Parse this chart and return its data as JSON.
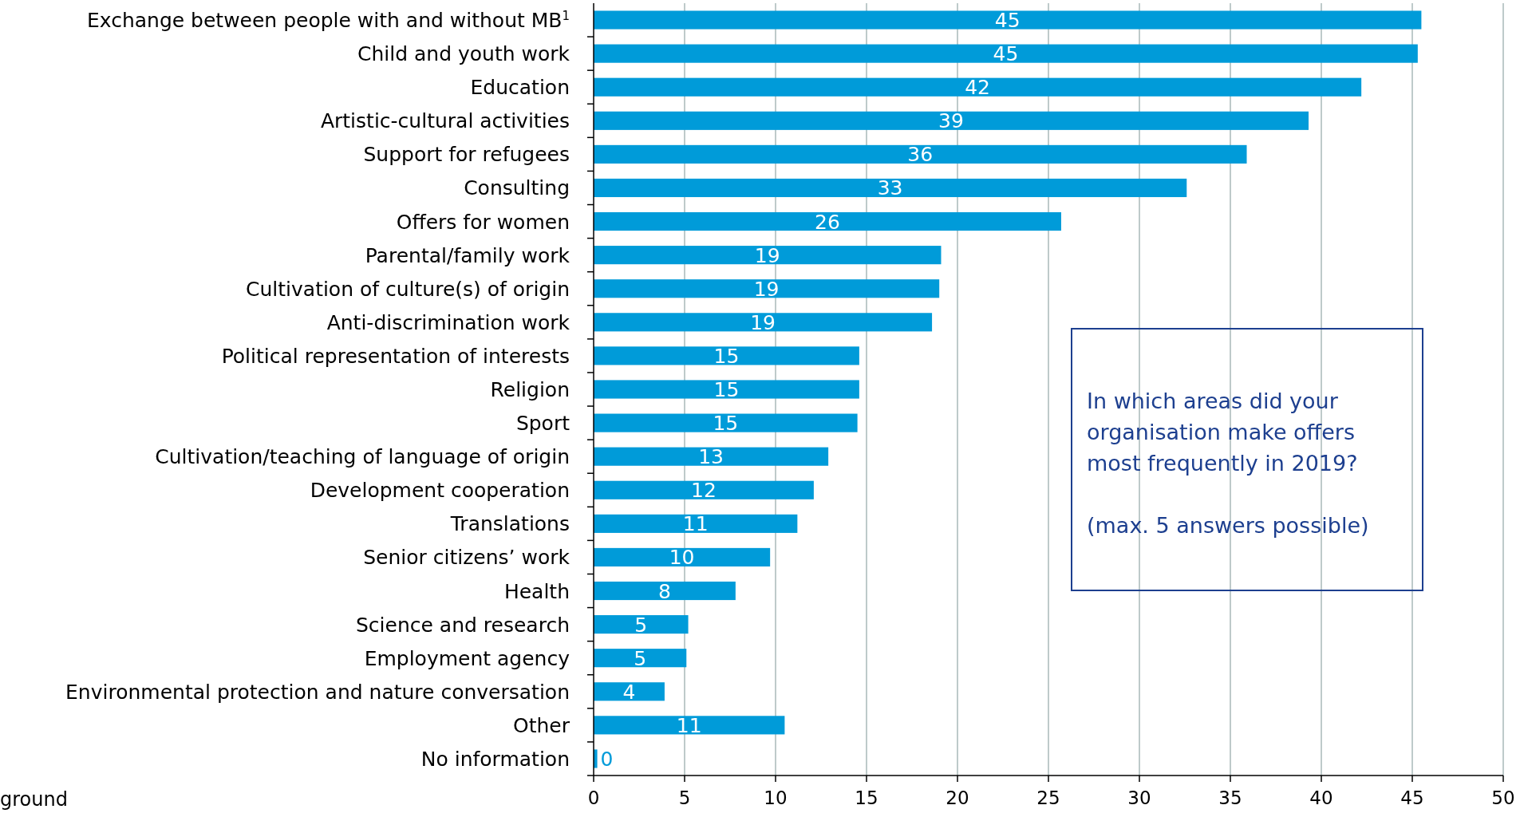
{
  "chart_data": {
    "type": "bar",
    "orientation": "horizontal",
    "categories": [
      "Exchange between people with and without MB$^{1}$",
      "Child and youth work",
      "Education",
      "Artistic-cultural activities",
      "Support for refugees",
      "Consulting",
      "Offers for women",
      "Parental/family work",
      "Cultivation of culture(s) of origin",
      "Anti-discrimination work",
      "Political representation of interests",
      "Religion",
      "Sport",
      "Cultivation/teaching of language of origin",
      "Development cooperation",
      "Translations",
      "Senior citizens’ work",
      "Health",
      "Science and research",
      "Employment agency",
      "Environmental protection and nature conversation",
      "Other",
      "No information"
    ],
    "values": [
      45.5,
      45.3,
      42.2,
      39.3,
      35.9,
      32.6,
      25.7,
      19.1,
      19.0,
      18.6,
      14.6,
      14.6,
      14.5,
      12.9,
      12.1,
      11.2,
      9.7,
      7.8,
      5.2,
      5.1,
      3.9,
      10.5,
      0.2
    ],
    "value_labels": [
      "45",
      "45",
      "42",
      "39",
      "36",
      "33",
      "26",
      "19",
      "19",
      "19",
      "15",
      "15",
      "15",
      "13",
      "12",
      "11",
      "10",
      "8",
      "5",
      "5",
      "4",
      "11",
      "0"
    ],
    "color": "#009bd9",
    "xlim": [
      0,
      50
    ],
    "xticks": [
      0,
      5,
      10,
      15,
      20,
      25,
      30,
      35,
      40,
      45,
      50
    ],
    "grid": "x",
    "annotations": [
      "In which areas did your organisation make offers most frequently in 2019?",
      "(max. 5 answers possible)",
      "ground"
    ]
  }
}
